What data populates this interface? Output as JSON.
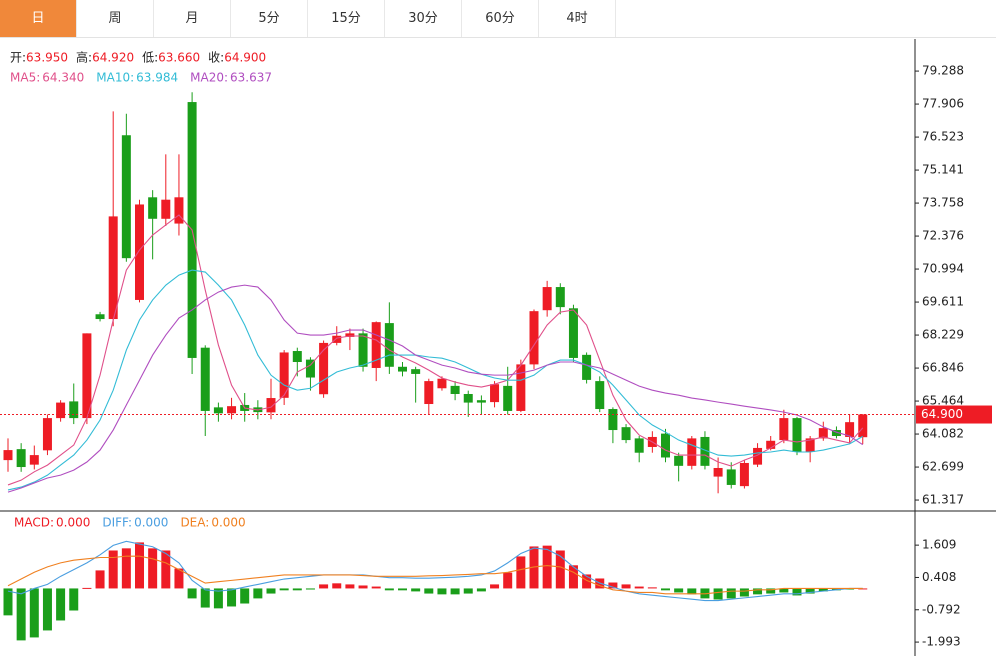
{
  "tabs": {
    "items": [
      "日",
      "周",
      "月",
      "5分",
      "15分",
      "30分",
      "60分",
      "4时"
    ],
    "active": 0
  },
  "chart_data": [
    {
      "type": "candlestick",
      "ohlc_info": [
        {
          "name": "开:",
          "label": "63.950"
        },
        {
          "name": "高:",
          "label": "64.920"
        },
        {
          "name": "低:",
          "label": "63.660"
        },
        {
          "name": "收:",
          "label": "64.900"
        }
      ],
      "categories": [
        null,
        null,
        null,
        null,
        null,
        null,
        null,
        null,
        null,
        null,
        null,
        null,
        null,
        null,
        null,
        null,
        null,
        null,
        null,
        null,
        null,
        null,
        null,
        null,
        null,
        null,
        null,
        null,
        null,
        null,
        null,
        null,
        null,
        null,
        null,
        null,
        null,
        null,
        null,
        null,
        null,
        null,
        null,
        null,
        null,
        null,
        null,
        null,
        null,
        null,
        null,
        null,
        null,
        null,
        null,
        null,
        null,
        null,
        null,
        null,
        null,
        null,
        null,
        null,
        null,
        null
      ],
      "open": [
        62.99,
        63.45,
        62.8,
        63.4,
        64.75,
        65.45,
        64.75,
        69.1,
        68.9,
        76.6,
        69.7,
        74.0,
        73.1,
        72.9,
        77.99,
        67.7,
        65.2,
        64.95,
        65.3,
        65.2,
        64.99,
        65.6,
        67.56,
        67.2,
        65.75,
        67.9,
        68.15,
        68.3,
        66.85,
        68.73,
        66.9,
        66.8,
        65.34,
        66.0,
        66.1,
        65.76,
        65.5,
        65.42,
        66.1,
        65.05,
        67.0,
        69.27,
        70.24,
        69.35,
        67.4,
        66.3,
        65.13,
        64.37,
        63.9,
        63.54,
        64.1,
        63.17,
        62.75,
        63.96,
        62.3,
        62.6,
        61.9,
        62.8,
        63.46,
        63.83,
        64.75,
        63.33,
        63.9,
        64.25,
        63.96,
        63.95
      ],
      "high": [
        63.9,
        63.7,
        63.6,
        64.9,
        65.5,
        66.2,
        68.3,
        69.2,
        77.6,
        77.5,
        73.9,
        74.3,
        75.8,
        75.8,
        78.4,
        67.8,
        65.4,
        65.6,
        65.8,
        65.5,
        66.4,
        67.6,
        67.7,
        67.3,
        68.0,
        68.6,
        68.5,
        68.5,
        68.8,
        69.6,
        67.1,
        66.9,
        66.4,
        66.5,
        66.3,
        65.9,
        65.7,
        66.3,
        66.9,
        67.2,
        69.3,
        70.5,
        70.4,
        69.5,
        67.5,
        66.5,
        65.2,
        64.5,
        64.0,
        64.2,
        64.3,
        63.3,
        64.0,
        64.2,
        63.1,
        62.9,
        63.0,
        63.7,
        64.0,
        65.1,
        64.8,
        64.0,
        64.6,
        64.4,
        64.9,
        64.92
      ],
      "low": [
        62.5,
        62.5,
        62.6,
        63.2,
        64.6,
        64.5,
        64.5,
        68.8,
        68.6,
        71.3,
        69.6,
        71.4,
        72.8,
        72.4,
        66.6,
        64.0,
        64.6,
        64.7,
        64.6,
        64.7,
        64.7,
        65.3,
        66.5,
        65.9,
        65.6,
        67.8,
        67.6,
        66.7,
        66.3,
        66.6,
        66.5,
        65.4,
        64.9,
        65.9,
        65.5,
        64.8,
        64.9,
        65.2,
        64.9,
        65.0,
        66.8,
        69.0,
        69.1,
        67.1,
        66.2,
        65.0,
        63.7,
        63.7,
        62.9,
        63.3,
        62.9,
        62.1,
        62.6,
        62.6,
        61.6,
        61.8,
        61.8,
        62.7,
        63.4,
        63.7,
        63.2,
        62.9,
        63.8,
        63.9,
        63.7,
        63.66
      ],
      "close": [
        63.41,
        62.7,
        63.2,
        64.75,
        65.4,
        64.75,
        68.3,
        68.9,
        73.2,
        71.45,
        73.7,
        73.1,
        73.9,
        74.0,
        67.27,
        65.05,
        64.95,
        65.25,
        65.05,
        65.0,
        65.59,
        67.5,
        67.1,
        66.45,
        67.9,
        68.2,
        68.3,
        66.9,
        68.77,
        66.9,
        66.7,
        66.6,
        66.3,
        66.4,
        65.76,
        65.4,
        65.4,
        66.17,
        65.05,
        67.0,
        69.23,
        70.24,
        69.4,
        67.27,
        66.35,
        65.13,
        64.25,
        63.83,
        63.3,
        63.96,
        63.1,
        62.75,
        63.9,
        62.75,
        62.66,
        61.95,
        62.87,
        63.5,
        63.8,
        64.75,
        63.33,
        63.9,
        64.33,
        64.0,
        64.58,
        64.9
      ],
      "up_color": "#ee1c25",
      "down_color": "#1a9e1a",
      "series": [
        {
          "name": "MA5:",
          "label": "64.340",
          "color": "#e0508a",
          "values": [
            61.95,
            62.15,
            62.5,
            62.78,
            63.2,
            63.62,
            64.75,
            66.55,
            68.86,
            70.95,
            71.79,
            72.42,
            72.84,
            73.26,
            72.63,
            70.11,
            67.81,
            66.13,
            65.17,
            65.09,
            65.21,
            65.71,
            66.68,
            66.97,
            67.6,
            68.1,
            68.19,
            68.19,
            68.02,
            67.6,
            67.31,
            67.06,
            66.76,
            66.43,
            66.26,
            66.13,
            66.05,
            66.17,
            66.34,
            66.97,
            67.81,
            68.65,
            69.19,
            69.28,
            68.65,
            67.18,
            65.71,
            64.67,
            64.04,
            63.75,
            63.41,
            63.2,
            63.2,
            63.2,
            62.91,
            62.74,
            62.99,
            63.2,
            63.5,
            63.83,
            63.75,
            63.83,
            63.96,
            63.83,
            63.71,
            64.34
          ]
        },
        {
          "name": "MA10:",
          "label": "63.984",
          "color": "#33bcd6",
          "values": [
            61.74,
            61.86,
            62.07,
            62.36,
            62.78,
            63.2,
            63.83,
            64.67,
            65.92,
            67.6,
            68.86,
            69.7,
            70.32,
            70.74,
            70.95,
            70.87,
            70.32,
            69.7,
            68.65,
            67.39,
            66.55,
            66.13,
            65.92,
            66.0,
            66.34,
            66.68,
            66.85,
            66.97,
            67.18,
            67.39,
            67.39,
            67.39,
            67.31,
            67.26,
            67.1,
            66.85,
            66.59,
            66.43,
            66.34,
            66.34,
            66.55,
            66.97,
            67.18,
            67.18,
            66.97,
            66.68,
            66.13,
            65.51,
            64.88,
            64.46,
            64.16,
            63.83,
            63.62,
            63.41,
            63.2,
            63.16,
            63.2,
            63.29,
            63.33,
            63.41,
            63.33,
            63.33,
            63.41,
            63.54,
            63.67,
            63.984
          ]
        },
        {
          "name": "MA20:",
          "label": "63.637",
          "color": "#b04ec0",
          "values": [
            61.65,
            61.82,
            62.03,
            62.24,
            62.36,
            62.57,
            62.91,
            63.41,
            64.25,
            65.3,
            66.34,
            67.39,
            68.23,
            68.94,
            69.28,
            69.7,
            70.03,
            70.24,
            70.32,
            70.24,
            69.7,
            68.86,
            68.31,
            68.23,
            68.23,
            68.31,
            68.44,
            68.44,
            68.23,
            68.02,
            67.77,
            67.39,
            67.18,
            66.97,
            66.85,
            66.68,
            66.59,
            66.55,
            66.55,
            66.64,
            66.76,
            66.97,
            67.1,
            67.1,
            66.97,
            66.85,
            66.59,
            66.34,
            66.09,
            65.92,
            65.8,
            65.71,
            65.59,
            65.51,
            65.42,
            65.34,
            65.25,
            65.17,
            65.09,
            65.0,
            64.88,
            64.67,
            64.38,
            64.16,
            64.0,
            63.637
          ]
        }
      ],
      "last_price": {
        "value": 64.9,
        "label": "64.900"
      },
      "ylim": [
        60.9,
        80.59
      ],
      "yticks": [
        79.288,
        77.906,
        76.523,
        75.141,
        73.758,
        72.376,
        70.994,
        69.611,
        68.229,
        66.846,
        65.464,
        64.082,
        62.699,
        61.317
      ]
    },
    {
      "type": "macd",
      "series": [
        {
          "name": "MACD:",
          "label": "0.000",
          "color": "#ee1c25",
          "down_color": "#1a9e1a",
          "values": [
            -1.0,
            -1.93,
            -1.82,
            -1.56,
            -1.19,
            -0.82,
            0.02,
            0.67,
            1.41,
            1.49,
            1.71,
            1.49,
            1.41,
            0.74,
            -0.37,
            -0.71,
            -0.74,
            -0.67,
            -0.56,
            -0.37,
            -0.19,
            -0.07,
            -0.07,
            -0.04,
            0.15,
            0.19,
            0.15,
            0.11,
            0.07,
            -0.07,
            -0.07,
            -0.11,
            -0.19,
            -0.22,
            -0.22,
            -0.19,
            -0.11,
            0.15,
            0.59,
            1.19,
            1.56,
            1.59,
            1.41,
            0.86,
            0.52,
            0.37,
            0.22,
            0.15,
            0.07,
            0.04,
            -0.07,
            -0.15,
            -0.22,
            -0.37,
            -0.41,
            -0.37,
            -0.3,
            -0.22,
            -0.19,
            -0.15,
            -0.26,
            -0.19,
            -0.11,
            -0.07,
            -0.04,
            0.0
          ]
        },
        {
          "name": "DIFF:",
          "label": "0.000",
          "color": "#4a9ee0",
          "values": [
            -0.1,
            -0.2,
            0.0,
            0.15,
            0.45,
            0.7,
            0.95,
            1.25,
            1.6,
            1.75,
            1.65,
            1.55,
            1.3,
            0.95,
            0.3,
            -0.05,
            -0.1,
            -0.05,
            0.05,
            0.15,
            0.25,
            0.35,
            0.4,
            0.45,
            0.5,
            0.5,
            0.5,
            0.5,
            0.45,
            0.4,
            0.4,
            0.38,
            0.38,
            0.4,
            0.42,
            0.45,
            0.5,
            0.65,
            0.95,
            1.3,
            1.5,
            1.45,
            1.2,
            0.8,
            0.45,
            0.2,
            0.05,
            -0.1,
            -0.2,
            -0.25,
            -0.3,
            -0.35,
            -0.4,
            -0.45,
            -0.45,
            -0.4,
            -0.35,
            -0.3,
            -0.25,
            -0.2,
            -0.2,
            -0.15,
            -0.1,
            -0.05,
            0.0,
            0.0
          ]
        },
        {
          "name": "DEA:",
          "label": "0.000",
          "color": "#f08020",
          "values": [
            0.1,
            0.35,
            0.6,
            0.8,
            0.95,
            1.05,
            1.1,
            1.15,
            1.15,
            1.2,
            1.2,
            1.1,
            0.95,
            0.7,
            0.45,
            0.2,
            0.25,
            0.3,
            0.35,
            0.4,
            0.45,
            0.5,
            0.5,
            0.5,
            0.5,
            0.5,
            0.5,
            0.48,
            0.45,
            0.45,
            0.45,
            0.45,
            0.47,
            0.48,
            0.5,
            0.52,
            0.55,
            0.55,
            0.6,
            0.7,
            0.8,
            0.85,
            0.8,
            0.6,
            0.3,
            0.1,
            -0.05,
            -0.1,
            -0.15,
            -0.15,
            -0.2,
            -0.2,
            -0.2,
            -0.2,
            -0.15,
            -0.1,
            -0.1,
            -0.05,
            -0.05,
            0.0,
            0.0,
            0.0,
            0.0,
            0.0,
            0.0,
            0.0
          ]
        }
      ],
      "ylim": [
        -2.51,
        2.84
      ],
      "yticks": [
        1.609,
        0.408,
        -0.792,
        -1.993
      ]
    }
  ]
}
